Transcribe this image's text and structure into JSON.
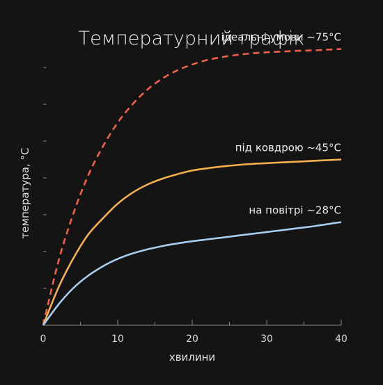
{
  "chart_data": {
    "type": "line",
    "title": "Температурний графік",
    "xlabel": "хвилини",
    "ylabel": "температура, °C",
    "xlim": [
      0,
      40
    ],
    "ylim": [
      0,
      80
    ],
    "x_ticks": [
      "0",
      "10",
      "20",
      "30",
      "40"
    ],
    "grid": false,
    "series": [
      {
        "name": "ідеальні умови ~75°C",
        "style": "dashed",
        "color": "#f0604a",
        "x": [
          0,
          2,
          4,
          6,
          8,
          10,
          12,
          14,
          16,
          18,
          20,
          22,
          24,
          26,
          28,
          30,
          32,
          34,
          36,
          38,
          40
        ],
        "y": [
          0,
          17,
          30,
          40.5,
          48.5,
          55,
          60,
          64,
          67,
          69.2,
          70.8,
          72,
          72.8,
          73.4,
          73.8,
          74.1,
          74.3,
          74.5,
          74.6,
          74.8,
          75
        ]
      },
      {
        "name": "під ковдрою ~45°C",
        "style": "solid",
        "color": "#f5b04e",
        "x": [
          0,
          2,
          4,
          6,
          8,
          10,
          12,
          14,
          16,
          18,
          20,
          22,
          24,
          26,
          28,
          30,
          32,
          34,
          36,
          38,
          40
        ],
        "y": [
          0,
          10,
          18,
          24.5,
          29,
          33,
          36,
          38.2,
          39.8,
          41,
          42,
          42.6,
          43.1,
          43.5,
          43.8,
          44,
          44.2,
          44.4,
          44.6,
          44.8,
          45
        ]
      },
      {
        "name": "на повітрі ~28°C",
        "style": "solid",
        "color": "#a8cdf0",
        "x": [
          0,
          2,
          4,
          6,
          8,
          10,
          12,
          14,
          16,
          18,
          20,
          22,
          24,
          26,
          28,
          30,
          32,
          34,
          36,
          38,
          40
        ],
        "y": [
          0,
          5.5,
          10,
          13.4,
          16,
          18,
          19.5,
          20.6,
          21.5,
          22.2,
          22.8,
          23.3,
          23.8,
          24.3,
          24.8,
          25.3,
          25.8,
          26.3,
          26.8,
          27.4,
          28
        ]
      }
    ]
  }
}
